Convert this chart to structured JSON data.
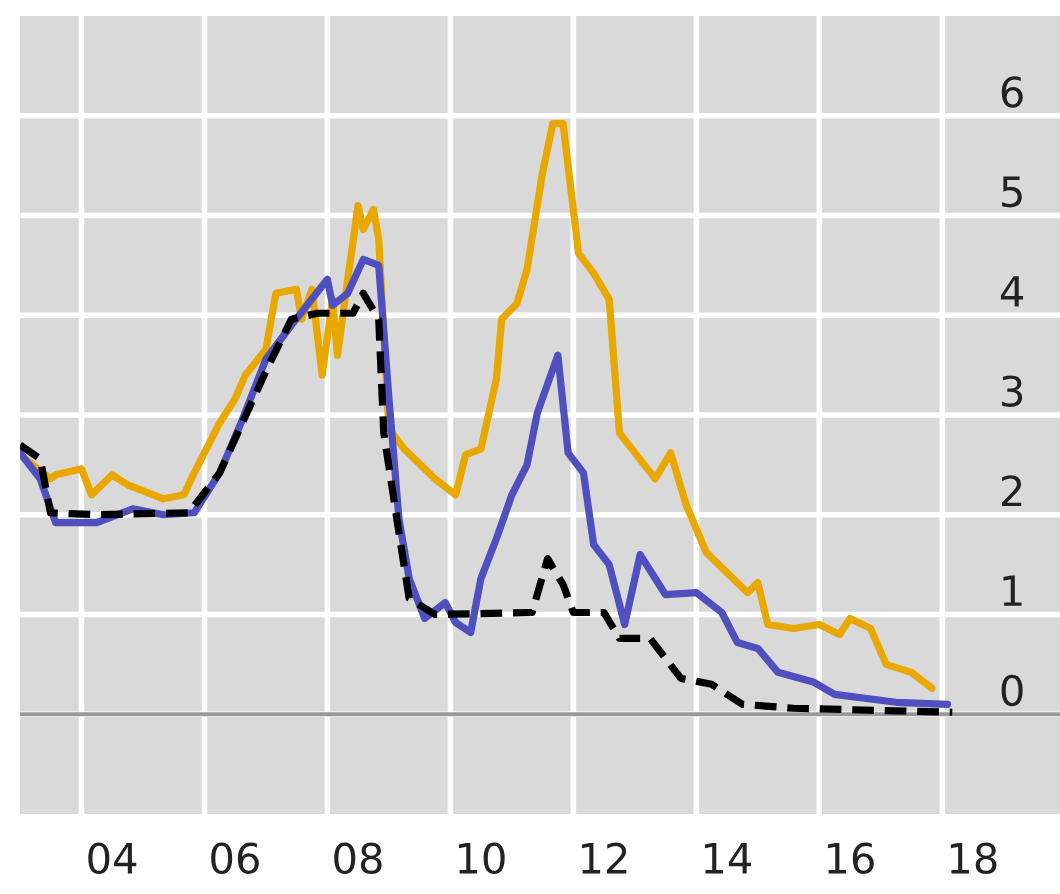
{
  "chart_data": {
    "type": "line",
    "xlim": [
      "2003-01",
      "2019-12"
    ],
    "ylim": [
      -1,
      7
    ],
    "xticks": [
      {
        "value": "2004-07",
        "label": "04"
      },
      {
        "value": "2006-07",
        "label": "06"
      },
      {
        "value": "2008-07",
        "label": "08"
      },
      {
        "value": "2010-07",
        "label": "10"
      },
      {
        "value": "2012-07",
        "label": "12"
      },
      {
        "value": "2014-07",
        "label": "14"
      },
      {
        "value": "2016-07",
        "label": "16"
      },
      {
        "value": "2018-07",
        "label": "18"
      }
    ],
    "yticks": [
      0,
      1,
      2,
      3,
      4,
      5,
      6
    ],
    "grid": true,
    "legend": false,
    "marker": "none",
    "ref_lines": [
      {
        "axis": "y",
        "value": 0,
        "color": "#999999"
      }
    ],
    "series": [
      {
        "color": "#e8a800",
        "line_style": "solid",
        "x": [
          "2003-01",
          "2003-07",
          "2003-08",
          "2004-01",
          "2004-03",
          "2004-07",
          "2004-10",
          "2005-02",
          "2005-05",
          "2005-09",
          "2005-11",
          "2006-04",
          "2006-07",
          "2006-09",
          "2007-01",
          "2007-03",
          "2007-07",
          "2007-08",
          "2007-10",
          "2007-12",
          "2008-02",
          "2008-03",
          "2008-05",
          "2008-07",
          "2008-08",
          "2008-10",
          "2008-11",
          "2009-01",
          "2009-04",
          "2009-08",
          "2009-10",
          "2010-02",
          "2010-04",
          "2010-07",
          "2010-10",
          "2010-11",
          "2011-02",
          "2011-04",
          "2011-07",
          "2011-09",
          "2011-11",
          "2012-02",
          "2012-05",
          "2012-08",
          "2012-10",
          "2013-01",
          "2013-05",
          "2013-08",
          "2013-11",
          "2014-03",
          "2014-07",
          "2014-11",
          "2015-01",
          "2015-03",
          "2015-08",
          "2016-01",
          "2016-05",
          "2016-07",
          "2016-11",
          "2017-02",
          "2017-07",
          "2017-11"
        ],
        "values": [
          2.6,
          2.36,
          2.4,
          2.46,
          2.2,
          2.4,
          2.3,
          2.22,
          2.16,
          2.2,
          2.42,
          2.92,
          3.16,
          3.4,
          3.66,
          4.22,
          4.26,
          3.96,
          4.26,
          3.4,
          4.16,
          3.6,
          4.36,
          5.1,
          4.86,
          5.06,
          4.76,
          2.86,
          2.66,
          2.46,
          2.36,
          2.2,
          2.6,
          2.66,
          3.36,
          3.96,
          4.12,
          4.46,
          5.42,
          5.92,
          5.92,
          4.62,
          4.42,
          4.16,
          2.82,
          2.62,
          2.36,
          2.62,
          2.1,
          1.62,
          1.42,
          1.22,
          1.32,
          0.9,
          0.86,
          0.9,
          0.8,
          0.96,
          0.86,
          0.5,
          0.42,
          0.26
        ]
      },
      {
        "color": "#4f4fbf",
        "line_style": "solid",
        "x": [
          "2003-01",
          "2003-05",
          "2003-08",
          "2004-04",
          "2004-11",
          "2005-05",
          "2005-11",
          "2006-04",
          "2006-08",
          "2007-01",
          "2007-06",
          "2008-01",
          "2008-02",
          "2008-05",
          "2008-08",
          "2008-11",
          "2009-01",
          "2009-03",
          "2009-05",
          "2009-08",
          "2009-12",
          "2010-02",
          "2010-05",
          "2010-07",
          "2010-10",
          "2011-01",
          "2011-04",
          "2011-06",
          "2011-10",
          "2011-12",
          "2012-03",
          "2012-05",
          "2012-08",
          "2012-11",
          "2013-02",
          "2013-07",
          "2014-01",
          "2014-06",
          "2014-09",
          "2015-01",
          "2015-05",
          "2015-12",
          "2016-04",
          "2017-04",
          "2018-02"
        ],
        "values": [
          2.62,
          2.36,
          1.92,
          1.92,
          2.06,
          2.0,
          2.02,
          2.42,
          2.9,
          3.56,
          3.9,
          4.36,
          4.1,
          4.22,
          4.56,
          4.5,
          3.16,
          1.96,
          1.36,
          0.96,
          1.12,
          0.92,
          0.82,
          1.36,
          1.76,
          2.2,
          2.5,
          3.02,
          3.6,
          2.62,
          2.42,
          1.7,
          1.5,
          0.9,
          1.6,
          1.2,
          1.22,
          1.02,
          0.72,
          0.66,
          0.42,
          0.32,
          0.2,
          0.12,
          0.1
        ]
      },
      {
        "color": "#000000",
        "line_style": "dashed",
        "x": [
          "2003-01",
          "2003-05",
          "2003-07",
          "2004-04",
          "2005-10",
          "2006-04",
          "2007-01",
          "2007-06",
          "2007-11",
          "2008-06",
          "2008-08",
          "2008-11",
          "2008-12",
          "2009-03",
          "2009-05",
          "2009-10",
          "2011-05",
          "2011-08",
          "2011-11",
          "2012-01",
          "2012-07",
          "2012-10",
          "2013-04",
          "2013-10",
          "2014-04",
          "2014-10",
          "2015-08",
          "2018-03"
        ],
        "values": [
          2.7,
          2.56,
          2.02,
          2.0,
          2.02,
          2.42,
          3.44,
          3.96,
          4.02,
          4.02,
          4.22,
          3.96,
          2.82,
          1.82,
          1.16,
          1.0,
          1.02,
          1.56,
          1.3,
          1.02,
          1.02,
          0.76,
          0.76,
          0.36,
          0.3,
          0.1,
          0.06,
          0.02
        ]
      }
    ]
  }
}
